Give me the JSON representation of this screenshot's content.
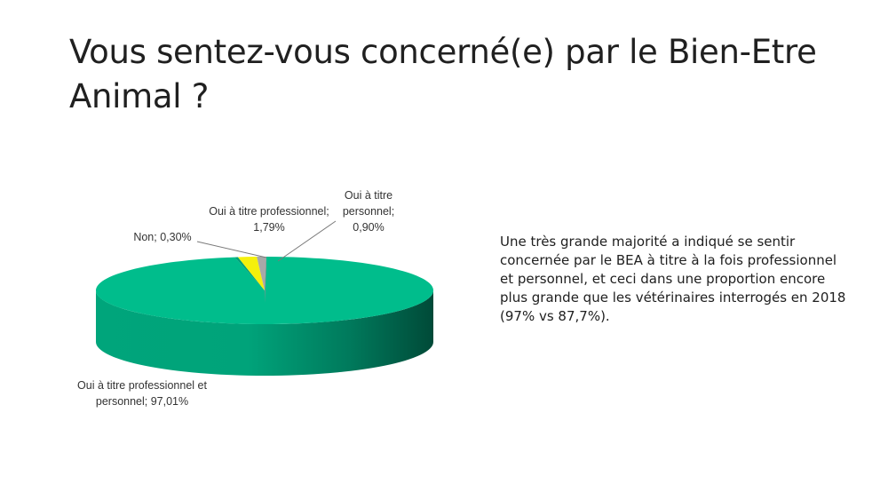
{
  "slide": {
    "title": "Vous sentez-vous concerné(e) par le Bien-Etre Animal ?",
    "commentary": "Une très grande majorité a indiqué se sentir concernée par le BEA à titre à la fois professionnel et personnel, et ceci dans une proportion encore plus grande que les vétérinaires interrogés en 2018 (97% vs 87,7%)."
  },
  "chart_data": {
    "type": "pie",
    "style": "3d",
    "legend": "none",
    "slices": [
      {
        "label": "Oui à titre professionnel et personnel",
        "value": 97.01,
        "label_lines": [
          "Oui à titre professionnel et",
          "personnel; 97,01%"
        ],
        "color": "#00b98a"
      },
      {
        "label": "Non",
        "value": 0.3,
        "label_lines": [
          "Non; 0,30%"
        ],
        "color": "#00a078"
      },
      {
        "label": "Oui à titre professionnel",
        "value": 1.79,
        "label_lines": [
          "Oui à titre professionnel;",
          "1,79%"
        ],
        "color": "#f5f00c"
      },
      {
        "label": "Oui à titre personnel",
        "value": 0.9,
        "label_lines": [
          "Oui à titre",
          "personnel;",
          "0,90%"
        ],
        "color": "#a8a8a8"
      }
    ]
  }
}
